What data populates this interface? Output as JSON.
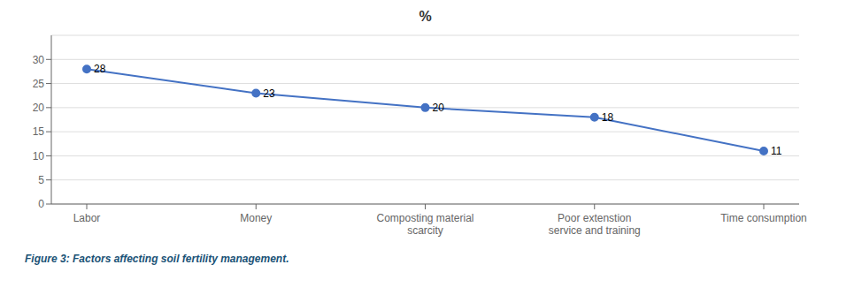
{
  "chart_data": {
    "type": "line",
    "title": "%",
    "caption": "Figure 3: Factors affecting soil fertility management.",
    "categories": [
      "Labor",
      "Money",
      "Composting material\nscarcity",
      "Poor extenstion\nservice and training",
      "Time consumption"
    ],
    "values": [
      28,
      23,
      20,
      18,
      11
    ],
    "color": "#4472C4",
    "marker": "circle",
    "ylim": [
      0,
      35
    ],
    "yticks": [
      0,
      5,
      10,
      15,
      20,
      25,
      30
    ],
    "grid": true,
    "data_labels": true
  }
}
